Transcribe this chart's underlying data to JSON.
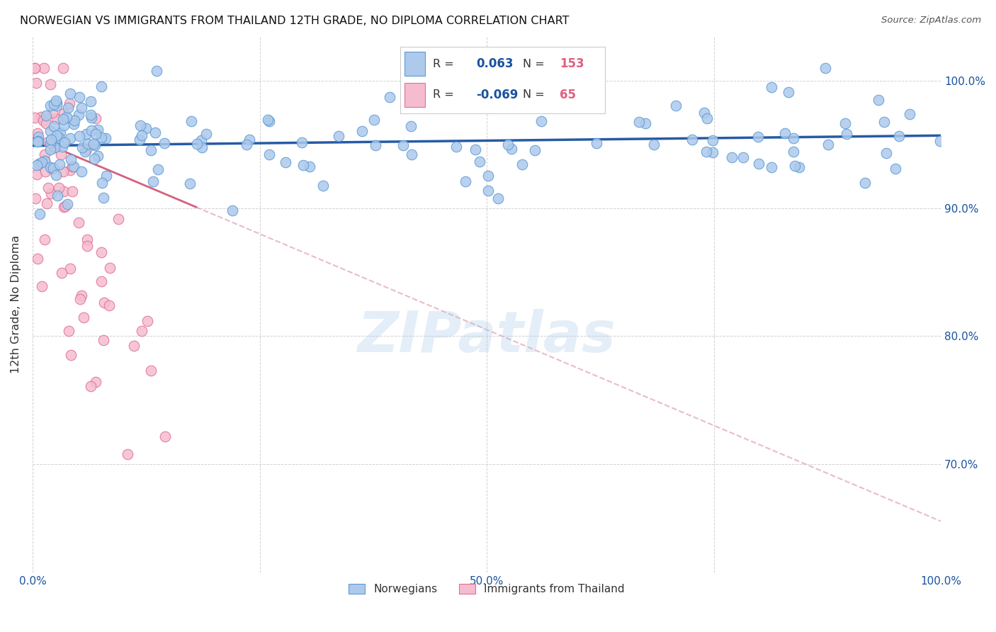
{
  "title": "NORWEGIAN VS IMMIGRANTS FROM THAILAND 12TH GRADE, NO DIPLOMA CORRELATION CHART",
  "source": "Source: ZipAtlas.com",
  "ylabel": "12th Grade, No Diploma",
  "R_norwegian": 0.063,
  "N_norwegian": 153,
  "R_thailand": -0.069,
  "N_thailand": 65,
  "x_min": 0.0,
  "x_max": 1.0,
  "y_min": 0.615,
  "y_max": 1.035,
  "yticks": [
    0.7,
    0.8,
    0.9,
    1.0
  ],
  "ytick_labels": [
    "70.0%",
    "80.0%",
    "90.0%",
    "100.0%"
  ],
  "norwegian_color": "#adc9eb",
  "norwegian_edge": "#5b9bd5",
  "thailand_color": "#f5bcd0",
  "thailand_edge": "#e07090",
  "trend_nor_color": "#1a52a0",
  "trend_thai_solid_color": "#d05070",
  "trend_thai_dash_color": "#e0a0b0",
  "legend_r_color": "#1a52a0",
  "legend_n_color": "#e06080",
  "watermark": "ZIPatlas",
  "background_color": "#ffffff",
  "grid_color": "#cccccc",
  "dot_size": 110
}
